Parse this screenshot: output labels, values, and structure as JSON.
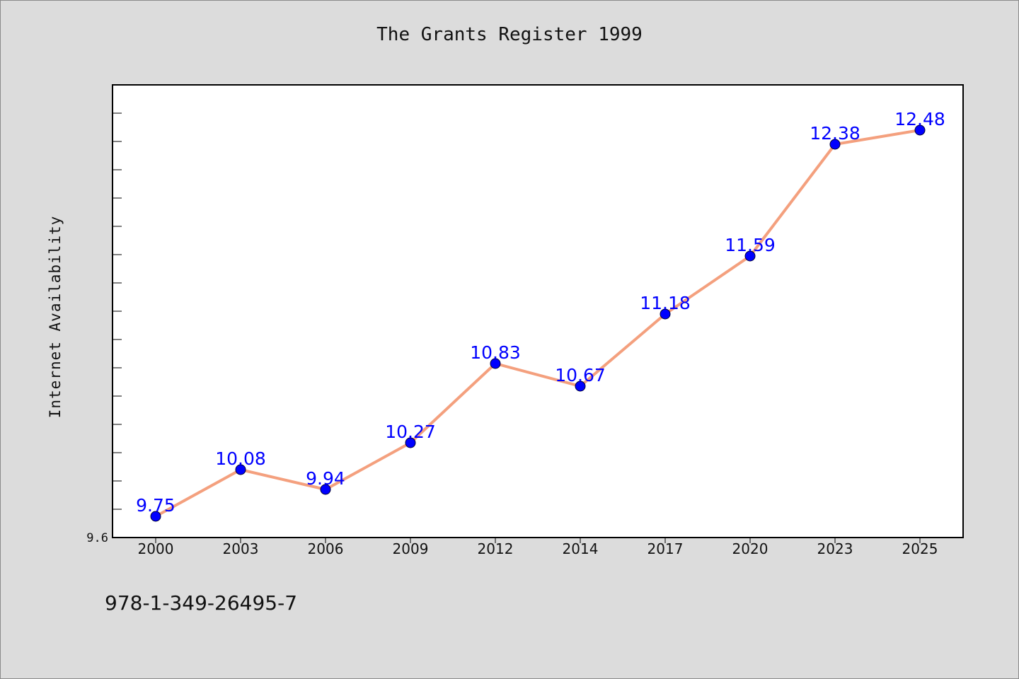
{
  "chart_data": {
    "type": "line",
    "title": "The Grants Register 1999",
    "ylabel": "Internet Availability",
    "xlabel": "",
    "categories": [
      "2000",
      "2003",
      "2006",
      "2009",
      "2012",
      "2014",
      "2017",
      "2020",
      "2023",
      "2025"
    ],
    "series": [
      {
        "values": [
          9.75,
          10.08,
          9.94,
          10.27,
          10.83,
          10.67,
          11.18,
          11.59,
          12.38,
          12.48
        ],
        "labels": [
          "9.75",
          "10.08",
          "9.94",
          "10.27",
          "10.83",
          "10.67",
          "11.18",
          "11.59",
          "12.38",
          "12.48"
        ]
      }
    ],
    "ylim": [
      9.6,
      12.8
    ],
    "y_tick_labels": [
      "9.6"
    ],
    "grid": false,
    "line_color": "#f4a07e",
    "marker_color": "#0000ff",
    "label_color": "#0000ff",
    "plot_background": "#ffffff"
  },
  "footer": {
    "code": "978-1-349-26495-7"
  },
  "colors": {
    "page_background": "#dcdcdc",
    "axis": "#000000"
  }
}
